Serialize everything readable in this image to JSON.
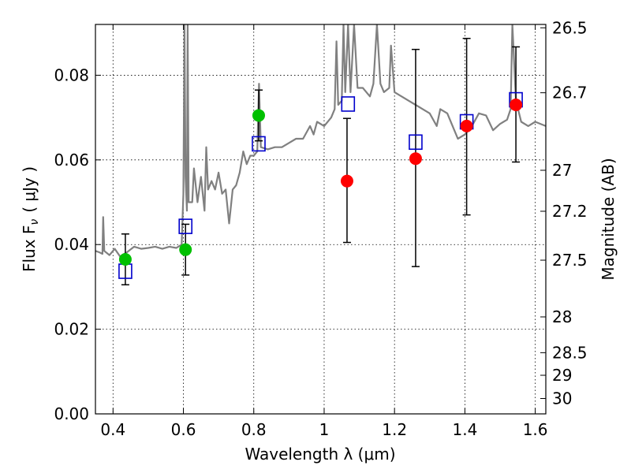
{
  "chart_data": {
    "type": "scatter",
    "title": "",
    "xlabel": "Wavelength  λ (μm)",
    "ylabel": "Flux  F",
    "ylabel_sub": "ν",
    "ylabel_unit": "( μJy )",
    "y2label": "Magnitude (AB)",
    "xlim": [
      0.35,
      1.63
    ],
    "ylim": [
      0.0,
      0.092
    ],
    "grid": true,
    "x_ticks": [
      {
        "value": 0.4,
        "label": "0.4"
      },
      {
        "value": 0.6,
        "label": "0.6"
      },
      {
        "value": 0.8,
        "label": "0.8"
      },
      {
        "value": 1.0,
        "label": "1"
      },
      {
        "value": 1.2,
        "label": "1.2"
      },
      {
        "value": 1.4,
        "label": "1.4"
      },
      {
        "value": 1.6,
        "label": "1.6"
      }
    ],
    "y_ticks": [
      {
        "value": 0.0,
        "label": "0.00"
      },
      {
        "value": 0.02,
        "label": "0.02"
      },
      {
        "value": 0.04,
        "label": "0.04"
      },
      {
        "value": 0.06,
        "label": "0.06"
      },
      {
        "value": 0.08,
        "label": "0.08"
      }
    ],
    "y2_ticks": [
      {
        "mag": 26.5,
        "label": "26.5"
      },
      {
        "mag": 26.7,
        "label": "26.7"
      },
      {
        "mag": 27.0,
        "label": "27"
      },
      {
        "mag": 27.2,
        "label": "27.2"
      },
      {
        "mag": 27.5,
        "label": "27.5"
      },
      {
        "mag": 28.0,
        "label": "28"
      },
      {
        "mag": 28.5,
        "label": "28.5"
      },
      {
        "mag": 29.0,
        "label": "29"
      },
      {
        "mag": 30.0,
        "label": "30"
      }
    ],
    "series": [
      {
        "marker": "circle",
        "color": "#00c000",
        "points": [
          {
            "x": 0.435,
            "y": 0.0365,
            "err_lo": 0.006,
            "err_hi": 0.006
          },
          {
            "x": 0.606,
            "y": 0.0388,
            "err_lo": 0.006,
            "err_hi": 0.006
          },
          {
            "x": 0.814,
            "y": 0.0705,
            "err_lo": 0.006,
            "err_hi": 0.006
          }
        ]
      },
      {
        "marker": "circle",
        "color": "#ff0000",
        "points": [
          {
            "x": 1.065,
            "y": 0.055,
            "err_lo": 0.0145,
            "err_hi": 0.0148
          },
          {
            "x": 1.26,
            "y": 0.0603,
            "err_lo": 0.0255,
            "err_hi": 0.0258
          },
          {
            "x": 1.405,
            "y": 0.068,
            "err_lo": 0.021,
            "err_hi": 0.0207
          },
          {
            "x": 1.545,
            "y": 0.073,
            "err_lo": 0.0135,
            "err_hi": 0.0137
          }
        ]
      },
      {
        "marker": "square-open",
        "color": "#0000cc",
        "points": [
          {
            "x": 0.435,
            "y": 0.0337
          },
          {
            "x": 0.606,
            "y": 0.0443
          },
          {
            "x": 0.814,
            "y": 0.0638
          },
          {
            "x": 1.068,
            "y": 0.0732
          },
          {
            "x": 1.26,
            "y": 0.0642
          },
          {
            "x": 1.405,
            "y": 0.069
          },
          {
            "x": 1.545,
            "y": 0.0742
          }
        ]
      },
      {
        "marker": "line",
        "color": "#808080",
        "points": [
          {
            "x": 0.35,
            "y": 0.0385
          },
          {
            "x": 0.36,
            "y": 0.0382
          },
          {
            "x": 0.37,
            "y": 0.0378
          },
          {
            "x": 0.372,
            "y": 0.0465
          },
          {
            "x": 0.375,
            "y": 0.0385
          },
          {
            "x": 0.39,
            "y": 0.0375
          },
          {
            "x": 0.405,
            "y": 0.039
          },
          {
            "x": 0.42,
            "y": 0.0372
          },
          {
            "x": 0.44,
            "y": 0.0382
          },
          {
            "x": 0.46,
            "y": 0.0395
          },
          {
            "x": 0.48,
            "y": 0.039
          },
          {
            "x": 0.5,
            "y": 0.0392
          },
          {
            "x": 0.52,
            "y": 0.0395
          },
          {
            "x": 0.54,
            "y": 0.039
          },
          {
            "x": 0.56,
            "y": 0.0395
          },
          {
            "x": 0.58,
            "y": 0.0392
          },
          {
            "x": 0.595,
            "y": 0.04
          },
          {
            "x": 0.6,
            "y": 0.052
          },
          {
            "x": 0.603,
            "y": 0.092
          },
          {
            "x": 0.606,
            "y": 0.056
          },
          {
            "x": 0.61,
            "y": 0.048
          },
          {
            "x": 0.612,
            "y": 0.092
          },
          {
            "x": 0.615,
            "y": 0.05
          },
          {
            "x": 0.625,
            "y": 0.05
          },
          {
            "x": 0.63,
            "y": 0.058
          },
          {
            "x": 0.64,
            "y": 0.05
          },
          {
            "x": 0.65,
            "y": 0.056
          },
          {
            "x": 0.66,
            "y": 0.048
          },
          {
            "x": 0.665,
            "y": 0.063
          },
          {
            "x": 0.67,
            "y": 0.053
          },
          {
            "x": 0.68,
            "y": 0.055
          },
          {
            "x": 0.69,
            "y": 0.053
          },
          {
            "x": 0.7,
            "y": 0.057
          },
          {
            "x": 0.71,
            "y": 0.052
          },
          {
            "x": 0.72,
            "y": 0.053
          },
          {
            "x": 0.73,
            "y": 0.045
          },
          {
            "x": 0.74,
            "y": 0.053
          },
          {
            "x": 0.75,
            "y": 0.054
          },
          {
            "x": 0.76,
            "y": 0.057
          },
          {
            "x": 0.77,
            "y": 0.062
          },
          {
            "x": 0.78,
            "y": 0.059
          },
          {
            "x": 0.79,
            "y": 0.061
          },
          {
            "x": 0.8,
            "y": 0.061
          },
          {
            "x": 0.81,
            "y": 0.062
          },
          {
            "x": 0.815,
            "y": 0.078
          },
          {
            "x": 0.82,
            "y": 0.063
          },
          {
            "x": 0.84,
            "y": 0.0625
          },
          {
            "x": 0.86,
            "y": 0.063
          },
          {
            "x": 0.88,
            "y": 0.063
          },
          {
            "x": 0.9,
            "y": 0.064
          },
          {
            "x": 0.92,
            "y": 0.065
          },
          {
            "x": 0.94,
            "y": 0.065
          },
          {
            "x": 0.96,
            "y": 0.068
          },
          {
            "x": 0.97,
            "y": 0.066
          },
          {
            "x": 0.98,
            "y": 0.069
          },
          {
            "x": 1.0,
            "y": 0.068
          },
          {
            "x": 1.02,
            "y": 0.07
          },
          {
            "x": 1.03,
            "y": 0.072
          },
          {
            "x": 1.035,
            "y": 0.088
          },
          {
            "x": 1.04,
            "y": 0.073
          },
          {
            "x": 1.05,
            "y": 0.074
          },
          {
            "x": 1.055,
            "y": 0.092
          },
          {
            "x": 1.06,
            "y": 0.076
          },
          {
            "x": 1.068,
            "y": 0.092
          },
          {
            "x": 1.075,
            "y": 0.076
          },
          {
            "x": 1.085,
            "y": 0.092
          },
          {
            "x": 1.095,
            "y": 0.077
          },
          {
            "x": 1.11,
            "y": 0.077
          },
          {
            "x": 1.12,
            "y": 0.076
          },
          {
            "x": 1.13,
            "y": 0.075
          },
          {
            "x": 1.14,
            "y": 0.078
          },
          {
            "x": 1.15,
            "y": 0.092
          },
          {
            "x": 1.16,
            "y": 0.078
          },
          {
            "x": 1.17,
            "y": 0.076
          },
          {
            "x": 1.185,
            "y": 0.077
          },
          {
            "x": 1.19,
            "y": 0.087
          },
          {
            "x": 1.2,
            "y": 0.076
          },
          {
            "x": 1.22,
            "y": 0.075
          },
          {
            "x": 1.24,
            "y": 0.074
          },
          {
            "x": 1.26,
            "y": 0.073
          },
          {
            "x": 1.28,
            "y": 0.072
          },
          {
            "x": 1.3,
            "y": 0.071
          },
          {
            "x": 1.32,
            "y": 0.068
          },
          {
            "x": 1.33,
            "y": 0.072
          },
          {
            "x": 1.35,
            "y": 0.071
          },
          {
            "x": 1.37,
            "y": 0.067
          },
          {
            "x": 1.38,
            "y": 0.065
          },
          {
            "x": 1.4,
            "y": 0.066
          },
          {
            "x": 1.42,
            "y": 0.068
          },
          {
            "x": 1.44,
            "y": 0.071
          },
          {
            "x": 1.46,
            "y": 0.0705
          },
          {
            "x": 1.48,
            "y": 0.067
          },
          {
            "x": 1.5,
            "y": 0.0685
          },
          {
            "x": 1.52,
            "y": 0.0695
          },
          {
            "x": 1.53,
            "y": 0.072
          },
          {
            "x": 1.535,
            "y": 0.092
          },
          {
            "x": 1.545,
            "y": 0.074
          },
          {
            "x": 1.56,
            "y": 0.069
          },
          {
            "x": 1.58,
            "y": 0.068
          },
          {
            "x": 1.6,
            "y": 0.069
          },
          {
            "x": 1.63,
            "y": 0.068
          }
        ]
      }
    ]
  }
}
